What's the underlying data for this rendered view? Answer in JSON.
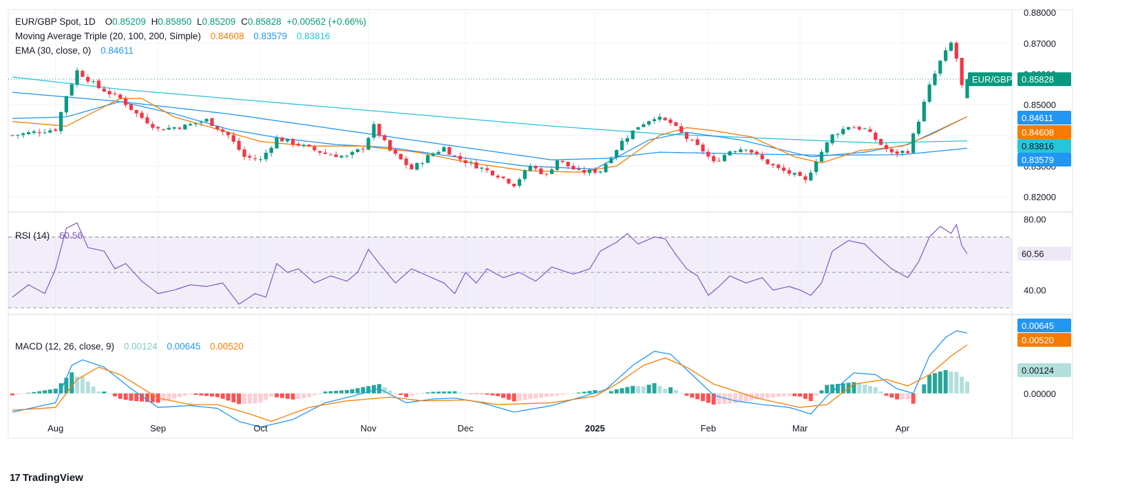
{
  "legend": {
    "symbol": "EUR/GBP Spot, 1D",
    "open_label": "O",
    "open": "0.85209",
    "high_label": "H",
    "high": "0.85850",
    "low_label": "L",
    "low": "0.85209",
    "close_label": "C",
    "close": "0.85828",
    "change": "+0.00562 (+0.66%)",
    "ma_label": "Moving Average Triple (20, 100, 200, Simple)",
    "ma20": "0.84608",
    "ma100": "0.83579",
    "ma200": "0.83816",
    "ema_label": "EMA (30, close, 0)",
    "ema": "0.84611",
    "rsi_label": "RSI (14)",
    "rsi": "60.56",
    "macd_label": "MACD (12, 26, close, 9)",
    "macd_hist": "0.00124",
    "macd_line": "0.00645",
    "macd_signal": "0.00520"
  },
  "price_tags": {
    "symbol_tag": "EUR/GBP",
    "last": "0.85828",
    "ema": "0.84611",
    "ma20": "0.84608",
    "ma200": "0.83816",
    "ma100": "0.83579",
    "rsi": "60.56",
    "macd_line": "0.00645",
    "macd_signal": "0.00520",
    "macd_hist": "0.00124"
  },
  "colors": {
    "up": "#089981",
    "down": "#f23645",
    "ma20": "#f57c00",
    "ma100": "#2196f3",
    "ma200": "#26c6da",
    "ema": "#2196f3",
    "rsi": "#7e57c2",
    "macd": "#2196f3",
    "signal": "#f57c00",
    "hist_up_strong": "#26a69a",
    "hist_up_weak": "#b2dfdb",
    "hist_down_strong": "#ff5252",
    "hist_down_weak": "#ffcdd2"
  },
  "footer": {
    "logo_glyph": "17",
    "brand": "TradingView"
  },
  "chart_data": [
    {
      "type": "candlestick",
      "title": "EUR/GBP Spot, 1D",
      "x_tick_labels": [
        "Aug",
        "Sep",
        "Oct",
        "Nov",
        "Dec",
        "2025",
        "Feb",
        "Mar",
        "Apr"
      ],
      "x_tick_index": [
        8,
        27,
        46,
        66,
        84,
        108,
        129,
        146,
        165
      ],
      "y_tick_labels": [
        "0.82000",
        "0.83000",
        "0.84000",
        "0.85000",
        "0.86000",
        "0.87000",
        "0.88000"
      ],
      "ylim": [
        0.8155,
        0.8805
      ],
      "scale": "linear",
      "grid": true,
      "last_close": 0.85828,
      "anchors": [
        [
          0,
          0.84
        ],
        [
          4,
          0.841
        ],
        [
          8,
          0.842
        ],
        [
          10,
          0.853
        ],
        [
          12,
          0.861
        ],
        [
          16,
          0.8555
        ],
        [
          20,
          0.852
        ],
        [
          23,
          0.847
        ],
        [
          27,
          0.842
        ],
        [
          32,
          0.843
        ],
        [
          36,
          0.845
        ],
        [
          40,
          0.84
        ],
        [
          43,
          0.833
        ],
        [
          46,
          0.832
        ],
        [
          49,
          0.839
        ],
        [
          53,
          0.837
        ],
        [
          58,
          0.834
        ],
        [
          62,
          0.833
        ],
        [
          65,
          0.836
        ],
        [
          67,
          0.843
        ],
        [
          70,
          0.835
        ],
        [
          74,
          0.829
        ],
        [
          77,
          0.833
        ],
        [
          80,
          0.836
        ],
        [
          82,
          0.833
        ],
        [
          86,
          0.83
        ],
        [
          90,
          0.827
        ],
        [
          93,
          0.824
        ],
        [
          96,
          0.83
        ],
        [
          99,
          0.827
        ],
        [
          101,
          0.832
        ],
        [
          105,
          0.828
        ],
        [
          109,
          0.8285
        ],
        [
          113,
          0.838
        ],
        [
          116,
          0.843
        ],
        [
          119,
          0.846
        ],
        [
          122,
          0.844
        ],
        [
          125,
          0.839
        ],
        [
          128,
          0.835
        ],
        [
          130,
          0.831
        ],
        [
          133,
          0.835
        ],
        [
          136,
          0.836
        ],
        [
          139,
          0.832
        ],
        [
          142,
          0.829
        ],
        [
          145,
          0.827
        ],
        [
          147,
          0.825
        ],
        [
          149,
          0.832
        ],
        [
          152,
          0.84
        ],
        [
          155,
          0.843
        ],
        [
          158,
          0.842
        ],
        [
          161,
          0.837
        ],
        [
          163,
          0.834
        ],
        [
          166,
          0.835
        ],
        [
          168,
          0.845
        ],
        [
          170,
          0.856
        ],
        [
          172,
          0.864
        ],
        [
          174,
          0.87
        ],
        [
          175,
          0.865
        ],
        [
          176,
          0.856
        ],
        [
          177,
          0.8583
        ]
      ],
      "overlays": {
        "sma20_anchors": [
          [
            0,
            0.8445
          ],
          [
            10,
            0.843
          ],
          [
            20,
            0.852
          ],
          [
            24,
            0.852
          ],
          [
            30,
            0.846
          ],
          [
            40,
            0.841
          ],
          [
            46,
            0.838
          ],
          [
            55,
            0.8365
          ],
          [
            65,
            0.8365
          ],
          [
            75,
            0.8345
          ],
          [
            85,
            0.831
          ],
          [
            95,
            0.8285
          ],
          [
            105,
            0.828
          ],
          [
            112,
            0.83
          ],
          [
            120,
            0.84
          ],
          [
            125,
            0.8425
          ],
          [
            130,
            0.8415
          ],
          [
            137,
            0.8395
          ],
          [
            145,
            0.833
          ],
          [
            150,
            0.831
          ],
          [
            157,
            0.835
          ],
          [
            165,
            0.8365
          ],
          [
            170,
            0.84
          ],
          [
            177,
            0.8461
          ]
        ],
        "sma100_anchors": [
          [
            0,
            0.854
          ],
          [
            20,
            0.851
          ],
          [
            40,
            0.847
          ],
          [
            60,
            0.842
          ],
          [
            80,
            0.837
          ],
          [
            100,
            0.832
          ],
          [
            110,
            0.8325
          ],
          [
            120,
            0.8345
          ],
          [
            135,
            0.834
          ],
          [
            150,
            0.8335
          ],
          [
            165,
            0.8337
          ],
          [
            177,
            0.8358
          ]
        ],
        "sma200_anchors": [
          [
            0,
            0.859
          ],
          [
            20,
            0.855
          ],
          [
            60,
            0.849
          ],
          [
            100,
            0.843
          ],
          [
            120,
            0.8405
          ],
          [
            140,
            0.839
          ],
          [
            160,
            0.8375
          ],
          [
            177,
            0.8382
          ]
        ],
        "ema30_anchors": [
          [
            0,
            0.8455
          ],
          [
            10,
            0.846
          ],
          [
            20,
            0.851
          ],
          [
            30,
            0.847
          ],
          [
            40,
            0.842
          ],
          [
            50,
            0.839
          ],
          [
            60,
            0.837
          ],
          [
            70,
            0.836
          ],
          [
            80,
            0.8335
          ],
          [
            95,
            0.83
          ],
          [
            108,
            0.829
          ],
          [
            118,
            0.8385
          ],
          [
            125,
            0.841
          ],
          [
            135,
            0.8385
          ],
          [
            148,
            0.833
          ],
          [
            158,
            0.8345
          ],
          [
            166,
            0.837
          ],
          [
            177,
            0.8461
          ]
        ],
        "last_price_line": 0.85828
      }
    },
    {
      "type": "line",
      "title": "RSI (14)",
      "y_tick_labels": [
        "40.00",
        "80.00"
      ],
      "ylim": [
        27,
        83
      ],
      "bands": [
        30,
        50,
        70
      ],
      "anchors": [
        [
          0,
          36
        ],
        [
          3,
          43
        ],
        [
          6,
          38
        ],
        [
          8,
          52
        ],
        [
          10,
          75
        ],
        [
          12,
          78
        ],
        [
          14,
          64
        ],
        [
          17,
          62
        ],
        [
          19,
          52
        ],
        [
          21,
          55
        ],
        [
          24,
          45
        ],
        [
          27,
          38
        ],
        [
          30,
          40
        ],
        [
          33,
          43
        ],
        [
          36,
          42
        ],
        [
          39,
          44
        ],
        [
          42,
          32
        ],
        [
          45,
          38
        ],
        [
          47,
          36
        ],
        [
          49,
          55
        ],
        [
          51,
          50
        ],
        [
          53,
          52
        ],
        [
          56,
          44
        ],
        [
          59,
          48
        ],
        [
          62,
          45
        ],
        [
          64,
          50
        ],
        [
          66,
          63
        ],
        [
          68,
          55
        ],
        [
          71,
          44
        ],
        [
          74,
          52
        ],
        [
          77,
          48
        ],
        [
          80,
          44
        ],
        [
          82,
          38
        ],
        [
          84,
          50
        ],
        [
          86,
          44
        ],
        [
          88,
          52
        ],
        [
          91,
          47
        ],
        [
          94,
          50
        ],
        [
          97,
          45
        ],
        [
          100,
          53
        ],
        [
          104,
          49
        ],
        [
          107,
          52
        ],
        [
          109,
          62
        ],
        [
          112,
          67
        ],
        [
          114,
          72
        ],
        [
          116,
          66
        ],
        [
          119,
          70
        ],
        [
          121,
          69
        ],
        [
          123,
          60
        ],
        [
          125,
          52
        ],
        [
          127,
          48
        ],
        [
          129,
          37
        ],
        [
          131,
          42
        ],
        [
          133,
          48
        ],
        [
          136,
          44
        ],
        [
          139,
          47
        ],
        [
          141,
          40
        ],
        [
          144,
          42
        ],
        [
          146,
          40
        ],
        [
          148,
          37
        ],
        [
          150,
          44
        ],
        [
          152,
          62
        ],
        [
          155,
          68
        ],
        [
          158,
          66
        ],
        [
          160,
          60
        ],
        [
          163,
          52
        ],
        [
          166,
          47
        ],
        [
          168,
          56
        ],
        [
          170,
          70
        ],
        [
          172,
          76
        ],
        [
          174,
          72
        ],
        [
          175,
          77
        ],
        [
          176,
          65
        ],
        [
          177,
          60.56
        ]
      ]
    },
    {
      "type": "macd",
      "title": "MACD (12, 26, close, 9)",
      "y_tick_labels": [
        "0.00000"
      ],
      "ylim": [
        -0.0048,
        0.0083
      ],
      "macd_anchors": [
        [
          0,
          -0.002
        ],
        [
          8,
          -0.001
        ],
        [
          11,
          0.003
        ],
        [
          13,
          0.0036
        ],
        [
          17,
          0.0028
        ],
        [
          22,
          0.0005
        ],
        [
          27,
          -0.0015
        ],
        [
          33,
          -0.0013
        ],
        [
          38,
          -0.0016
        ],
        [
          42,
          -0.003
        ],
        [
          46,
          -0.0036
        ],
        [
          52,
          -0.0028
        ],
        [
          58,
          -0.001
        ],
        [
          63,
          -0.0003
        ],
        [
          68,
          0.0005
        ],
        [
          73,
          -0.001
        ],
        [
          78,
          -0.0006
        ],
        [
          82,
          -0.0005
        ],
        [
          87,
          -0.001
        ],
        [
          93,
          -0.002
        ],
        [
          100,
          -0.0013
        ],
        [
          106,
          -0.0003
        ],
        [
          110,
          0.0004
        ],
        [
          115,
          0.003
        ],
        [
          119,
          0.0045
        ],
        [
          122,
          0.0042
        ],
        [
          126,
          0.002
        ],
        [
          130,
          -0.0002
        ],
        [
          134,
          -0.0008
        ],
        [
          139,
          -0.0012
        ],
        [
          144,
          -0.0015
        ],
        [
          148,
          -0.0022
        ],
        [
          151,
          -0.0003
        ],
        [
          156,
          0.0022
        ],
        [
          160,
          0.002
        ],
        [
          164,
          0.0005
        ],
        [
          167,
          0.0
        ],
        [
          170,
          0.004
        ],
        [
          173,
          0.006
        ],
        [
          175,
          0.0067
        ],
        [
          177,
          0.00645
        ]
      ],
      "signal_anchors": [
        [
          0,
          -0.0018
        ],
        [
          8,
          -0.0015
        ],
        [
          12,
          0.0015
        ],
        [
          16,
          0.0028
        ],
        [
          20,
          0.002
        ],
        [
          27,
          -0.0005
        ],
        [
          33,
          -0.0012
        ],
        [
          38,
          -0.0012
        ],
        [
          44,
          -0.0022
        ],
        [
          48,
          -0.003
        ],
        [
          55,
          -0.0015
        ],
        [
          62,
          -0.0008
        ],
        [
          70,
          -0.0004
        ],
        [
          76,
          -0.0008
        ],
        [
          84,
          -0.0007
        ],
        [
          90,
          -0.0012
        ],
        [
          100,
          -0.001
        ],
        [
          108,
          -0.0003
        ],
        [
          112,
          0.001
        ],
        [
          117,
          0.003
        ],
        [
          121,
          0.0038
        ],
        [
          125,
          0.0028
        ],
        [
          130,
          0.001
        ],
        [
          138,
          -0.0005
        ],
        [
          146,
          -0.0015
        ],
        [
          151,
          -0.0012
        ],
        [
          156,
          0.001
        ],
        [
          162,
          0.0015
        ],
        [
          166,
          0.0008
        ],
        [
          170,
          0.002
        ],
        [
          174,
          0.004
        ],
        [
          177,
          0.0052
        ]
      ]
    }
  ]
}
